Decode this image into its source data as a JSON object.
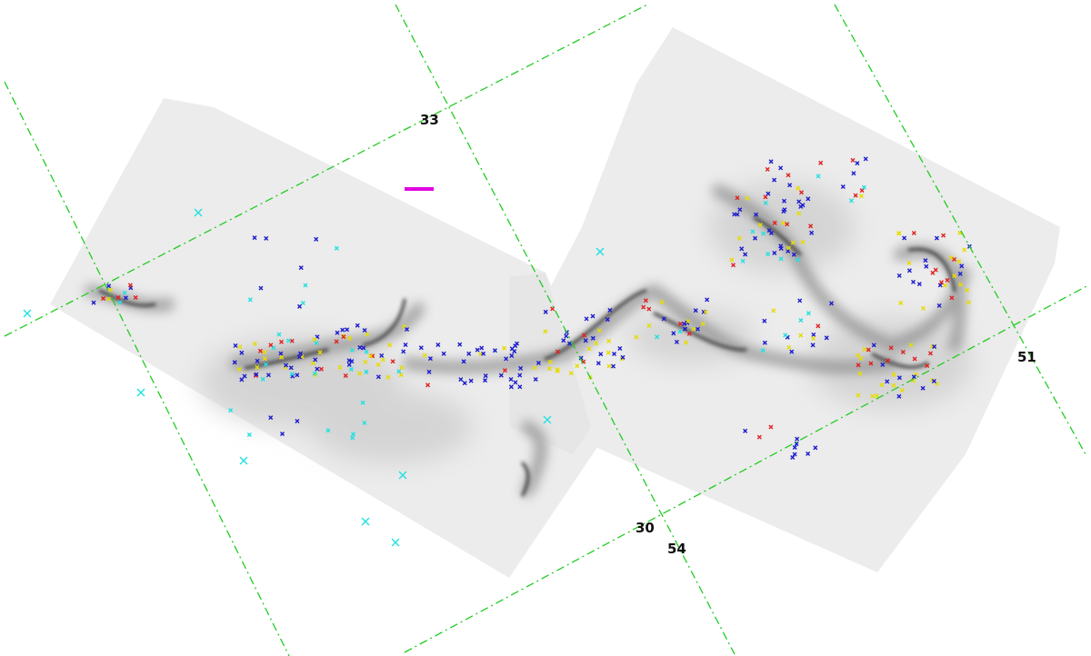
{
  "coordinate_labels": [
    "33",
    "30",
    "54",
    "51"
  ]
}
